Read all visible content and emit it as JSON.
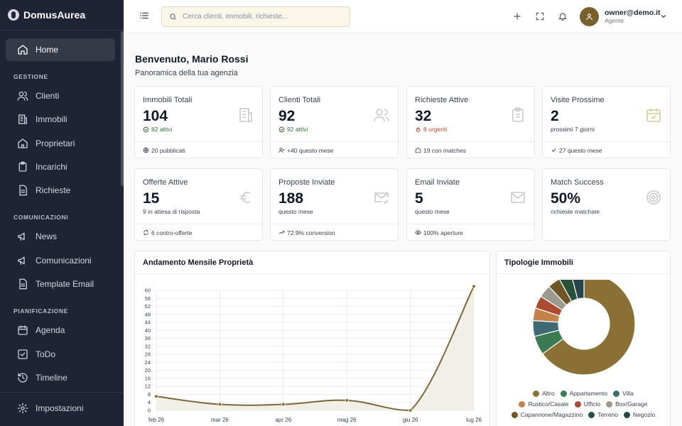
{
  "brand": {
    "name": "DomusAurea"
  },
  "sidebar": {
    "home": "Home",
    "sections": {
      "gestione": "GESTIONE",
      "comunicazioni": "COMUNICAZIONI",
      "pianificazione": "PIANIFICAZIONE"
    },
    "items": {
      "clienti": "Clienti",
      "immobili": "Immobili",
      "proprietari": "Proprietari",
      "incarichi": "Incarichi",
      "richieste": "Richieste",
      "news": "News",
      "comunicazioni": "Comunicazioni",
      "template_email": "Template Email",
      "agenda": "Agenda",
      "todo": "ToDo",
      "timeline": "Timeline",
      "impostazioni": "Impostazioni"
    }
  },
  "header": {
    "search_placeholder": "Cerca clienti, immobili, richieste...",
    "user_email": "owner@demo.it",
    "user_role": "Agente"
  },
  "main": {
    "welcome": "Benvenuto, Mario Rossi",
    "subtitle": "Panoramica della tua agenzia"
  },
  "cards": [
    {
      "title": "Immobili Totali",
      "value": "104",
      "note": "82 attivi",
      "footer": "20 pubblicati"
    },
    {
      "title": "Clienti Totali",
      "value": "92",
      "note": "92 attivi",
      "footer": "+40 questo mese"
    },
    {
      "title": "Richieste Attive",
      "value": "32",
      "note": "8 urgenti",
      "footer": "19 con matches"
    },
    {
      "title": "Visite Prossime",
      "value": "2",
      "note": "prossimi 7 giorni",
      "footer": "27 questo mese"
    },
    {
      "title": "Offerte Attive",
      "value": "15",
      "note": "9 in attesa di risposta",
      "footer": "6 contro-offerte"
    },
    {
      "title": "Proposte Inviate",
      "value": "188",
      "note": "questo mese",
      "footer": "72.9% conversion"
    },
    {
      "title": "Email Inviate",
      "value": "5",
      "note": "questo mese",
      "footer": "100% aperture"
    },
    {
      "title": "Match Success",
      "value": "50%",
      "note": "richieste matchate"
    }
  ],
  "colors": {
    "accent": "#8a7035",
    "sidebar": "#1e2433"
  },
  "chart_data": [
    {
      "type": "area",
      "title": "Andamento Mensile Proprietà",
      "categories": [
        "feb 26",
        "mar 26",
        "apr 26",
        "mag 26",
        "giu 26",
        "lug 26"
      ],
      "values": [
        7,
        3,
        3,
        5,
        0,
        62
      ],
      "ylim": [
        0,
        60
      ],
      "yticks": [
        "0",
        "4",
        "8",
        "12",
        "16",
        "20",
        "24",
        "28",
        "32",
        "36",
        "40",
        "44",
        "48",
        "52",
        "56",
        "60"
      ],
      "grid": true
    },
    {
      "type": "pie",
      "title": "Tipologie Immobili",
      "labels": [
        "Altro",
        "Appartamento",
        "Villa",
        "Rustico/Casale",
        "Ufficio",
        "Box/Garage",
        "Capannone/Magazzino",
        "Terreno",
        "Negozio"
      ],
      "values": [
        65,
        6,
        5,
        4,
        4,
        4,
        4,
        4,
        4
      ],
      "colors": [
        "#8a7035",
        "#3c7a52",
        "#3e6a73",
        "#c4824a",
        "#ad4a32",
        "#9c9a8e",
        "#6f5628",
        "#29523a",
        "#27454b"
      ],
      "legend": "bottom"
    }
  ]
}
